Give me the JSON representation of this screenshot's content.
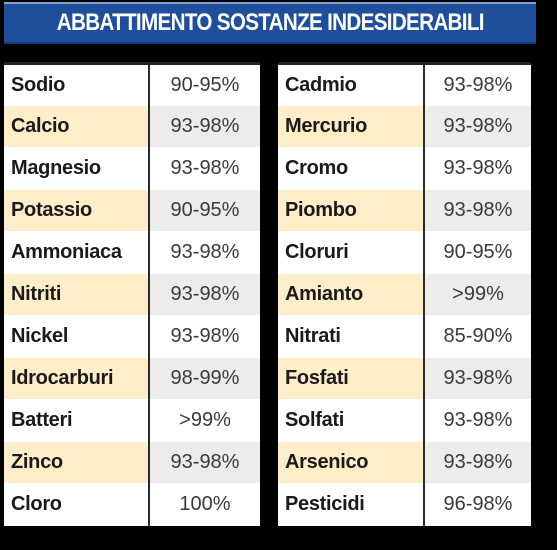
{
  "title": "ABBATTIMENTO SOSTANZE INDESIDERABILI",
  "colors": {
    "banner": "#1f4f9b",
    "row_highlight": "#fdeec9",
    "value_highlight": "#ececec",
    "background": "#000000"
  },
  "left_table": [
    {
      "name": "Sodio",
      "value": "90-95%"
    },
    {
      "name": "Calcio",
      "value": "93-98%"
    },
    {
      "name": "Magnesio",
      "value": "93-98%"
    },
    {
      "name": "Potassio",
      "value": "90-95%"
    },
    {
      "name": "Ammoniaca",
      "value": "93-98%"
    },
    {
      "name": "Nitriti",
      "value": "93-98%"
    },
    {
      "name": "Nickel",
      "value": "93-98%"
    },
    {
      "name": "Idrocarburi",
      "value": "98-99%"
    },
    {
      "name": "Batteri",
      "value": ">99%"
    },
    {
      "name": "Zinco",
      "value": "93-98%"
    },
    {
      "name": "Cloro",
      "value": "100%"
    }
  ],
  "right_table": [
    {
      "name": "Cadmio",
      "value": "93-98%"
    },
    {
      "name": "Mercurio",
      "value": "93-98%"
    },
    {
      "name": "Cromo",
      "value": "93-98%"
    },
    {
      "name": "Piombo",
      "value": "93-98%"
    },
    {
      "name": "Cloruri",
      "value": "90-95%"
    },
    {
      "name": "Amianto",
      "value": ">99%"
    },
    {
      "name": "Nitrati",
      "value": "85-90%"
    },
    {
      "name": "Fosfati",
      "value": "93-98%"
    },
    {
      "name": "Solfati",
      "value": "93-98%"
    },
    {
      "name": "Arsenico",
      "value": "93-98%"
    },
    {
      "name": "Pesticidi",
      "value": "96-98%"
    }
  ]
}
